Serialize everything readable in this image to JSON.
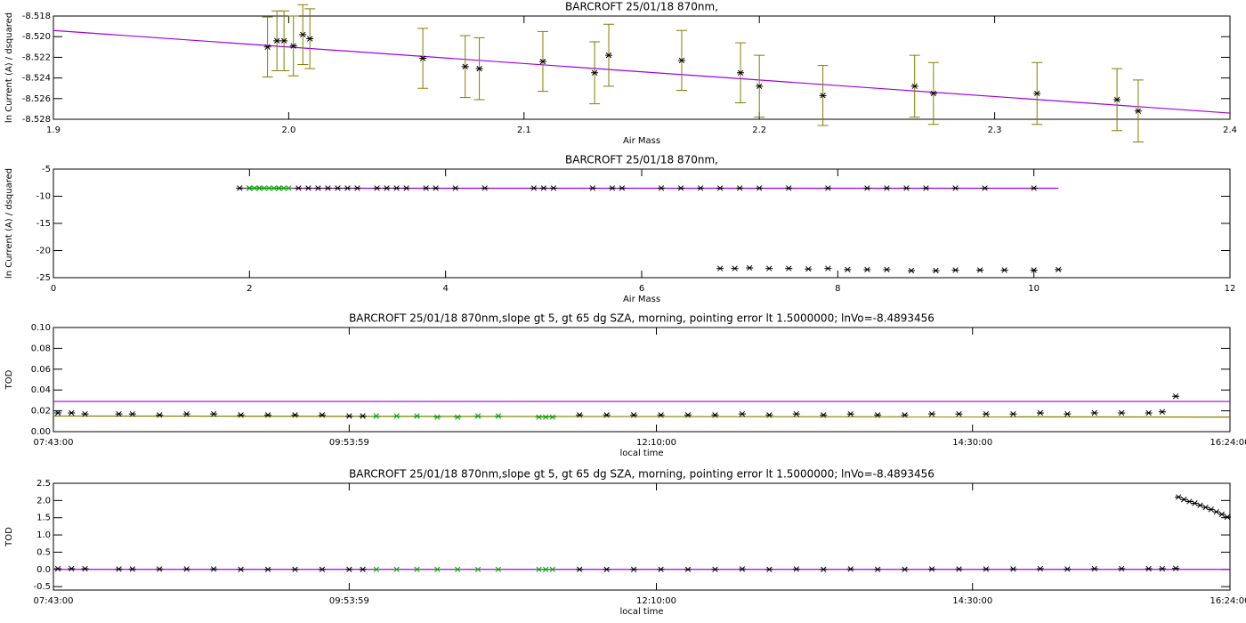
{
  "chart_data": [
    {
      "type": "scatter",
      "title": "BARCROFT 25/01/18 870nm,",
      "xlabel": "Air Mass",
      "ylabel": "ln Current (A) / dsquared",
      "xlim": [
        1.9,
        2.4
      ],
      "ylim": [
        -8.528,
        -8.518
      ],
      "xticks": [
        1.9,
        {
          "value": 2,
          "label": "2.0"
        },
        2.1,
        2.2,
        2.3,
        2.4
      ],
      "yticks": [
        -8.518,
        {
          "value": -8.52,
          "label": "-8.520"
        },
        -8.522,
        -8.524,
        -8.526,
        -8.528
      ],
      "series": [
        {
          "color": "#000000",
          "error_color": "#808000",
          "x": [
            1.991,
            1.995,
            1.998,
            2.002,
            2.006,
            2.009,
            2.057,
            2.075,
            2.081,
            2.108,
            2.13,
            2.136,
            2.167,
            2.192,
            2.2,
            2.227,
            2.266,
            2.274,
            2.318,
            2.352,
            2.361
          ],
          "values": [
            -8.521,
            -8.5204,
            -8.5204,
            -8.5209,
            -8.5198,
            -8.5202,
            -8.5221,
            -8.5229,
            -8.5231,
            -8.5224,
            -8.5235,
            -8.5218,
            -8.5223,
            -8.5235,
            -8.5248,
            -8.5257,
            -8.5248,
            -8.5255,
            -8.5255,
            -8.5261,
            -8.5272
          ],
          "errors": [
            0.0029,
            0.0029,
            0.0029,
            0.0029,
            0.0029,
            0.0029,
            0.0029,
            0.003,
            0.003,
            0.0029,
            0.003,
            0.003,
            0.0029,
            0.0029,
            0.003,
            0.0029,
            0.003,
            0.003,
            0.003,
            0.003,
            0.003
          ]
        }
      ],
      "lines": [
        {
          "color": "#a000e0",
          "x": [
            1.9,
            2.4
          ],
          "values": [
            -8.5194,
            -8.5274
          ]
        }
      ]
    },
    {
      "type": "scatter",
      "title": "BARCROFT 25/01/18 870nm,",
      "xlabel": "Air Mass",
      "ylabel": "ln Current (A) / dsquared",
      "xlim": [
        0,
        12
      ],
      "ylim": [
        -25,
        -5
      ],
      "xticks": [
        0,
        2,
        4,
        6,
        8,
        10,
        12
      ],
      "yticks": [
        -5,
        -10,
        -15,
        -20,
        -25
      ],
      "series": [
        {
          "color": "#000000",
          "x": [
            1.9,
            2.0,
            2.1,
            2.3,
            2.5,
            2.6,
            2.7,
            2.8,
            2.9,
            3.0,
            3.1,
            3.3,
            3.4,
            3.5,
            3.6,
            3.8,
            3.9,
            4.1,
            4.4,
            4.9,
            5.0,
            5.1,
            5.5,
            5.7,
            5.8,
            6.2,
            6.4,
            6.6,
            6.8,
            7.0,
            7.2,
            7.5,
            7.9,
            8.3,
            8.5,
            8.7,
            8.9,
            9.2,
            9.5,
            10.0
          ],
          "values": [
            -8.5,
            -8.5,
            -8.5,
            -8.5,
            -8.5,
            -8.5,
            -8.5,
            -8.5,
            -8.5,
            -8.5,
            -8.5,
            -8.5,
            -8.5,
            -8.5,
            -8.5,
            -8.5,
            -8.5,
            -8.5,
            -8.5,
            -8.5,
            -8.5,
            -8.5,
            -8.5,
            -8.5,
            -8.5,
            -8.5,
            -8.5,
            -8.5,
            -8.5,
            -8.5,
            -8.5,
            -8.5,
            -8.5,
            -8.5,
            -8.5,
            -8.5,
            -8.5,
            -8.5,
            -8.5,
            -8.5
          ]
        },
        {
          "color": "#000000",
          "x": [
            6.8,
            6.95,
            7.1,
            7.3,
            7.5,
            7.7,
            7.9,
            8.1,
            8.3,
            8.5,
            8.75,
            9.0,
            9.2,
            9.45,
            9.7,
            10.0,
            10.25
          ],
          "values": [
            -23.3,
            -23.3,
            -23.2,
            -23.3,
            -23.3,
            -23.4,
            -23.3,
            -23.5,
            -23.5,
            -23.5,
            -23.7,
            -23.7,
            -23.6,
            -23.6,
            -23.6,
            -23.6,
            -23.5
          ]
        },
        {
          "color": "#00a000",
          "x": [
            2.0,
            2.05,
            2.1,
            2.15,
            2.2,
            2.25,
            2.3,
            2.35,
            2.4
          ],
          "values": [
            -8.5,
            -8.5,
            -8.5,
            -8.5,
            -8.5,
            -8.5,
            -8.5,
            -8.5,
            -8.5
          ]
        }
      ],
      "lines": [
        {
          "color": "#a000e0",
          "x": [
            1.9,
            10.25
          ],
          "values": [
            -8.53,
            -8.53
          ]
        }
      ]
    },
    {
      "type": "scatter",
      "title": "BARCROFT 25/01/18 870nm,slope gt 5, gt 65 dg SZA, morning, pointing error lt 1.5000000; lnVo=-8.4893456",
      "xlabel": "local time",
      "ylabel": "TOD",
      "xlim": [
        7.7167,
        16.4
      ],
      "ylim": [
        0,
        0.1
      ],
      "xticks": [
        {
          "value": 7.7167,
          "label": "07:43:00"
        },
        {
          "value": 9.8997,
          "label": "09:53:59"
        },
        {
          "value": 12.1667,
          "label": "12:10:00"
        },
        {
          "value": 14.5,
          "label": "14:30:00"
        },
        {
          "value": 16.4,
          "label": "16:24:00"
        }
      ],
      "yticks": [
        {
          "value": 0,
          "label": "0.00"
        },
        0.02,
        0.04,
        0.06,
        0.08,
        {
          "value": 0.1,
          "label": "0.10"
        }
      ],
      "series": [
        {
          "color": "#000000",
          "x": [
            7.75,
            7.85,
            7.95,
            8.2,
            8.3,
            8.5,
            8.7,
            8.9,
            9.1,
            9.3,
            9.5,
            9.7,
            9.9,
            10.0,
            11.6,
            11.8,
            12.0,
            12.2,
            12.4,
            12.6,
            12.8,
            13.0,
            13.2,
            13.4,
            13.6,
            13.8,
            14.0,
            14.2,
            14.4,
            14.6,
            14.8,
            15.0,
            15.2,
            15.4,
            15.6,
            15.8,
            15.9,
            16.0
          ],
          "values": [
            0.018,
            0.018,
            0.017,
            0.017,
            0.017,
            0.016,
            0.017,
            0.017,
            0.016,
            0.016,
            0.016,
            0.016,
            0.015,
            0.015,
            0.016,
            0.016,
            0.016,
            0.016,
            0.016,
            0.016,
            0.017,
            0.016,
            0.017,
            0.016,
            0.017,
            0.016,
            0.016,
            0.017,
            0.017,
            0.017,
            0.017,
            0.018,
            0.017,
            0.018,
            0.018,
            0.018,
            0.019,
            0.034
          ]
        },
        {
          "color": "#00a000",
          "x": [
            10.1,
            10.25,
            10.4,
            10.55,
            10.7,
            10.85,
            11.0,
            11.3,
            11.35,
            11.4
          ],
          "values": [
            0.015,
            0.015,
            0.015,
            0.014,
            0.014,
            0.015,
            0.015,
            0.014,
            0.014,
            0.014
          ]
        }
      ],
      "lines": [
        {
          "color": "#a000e0",
          "x": [
            7.7167,
            16.4
          ],
          "values": [
            0.029,
            0.029
          ]
        },
        {
          "color": "#808000",
          "x": [
            7.7167,
            16.4
          ],
          "values": [
            0.015,
            0.014
          ]
        }
      ]
    },
    {
      "type": "scatter",
      "title": "BARCROFT 25/01/18 870nm,slope gt 5, gt 65 dg SZA, morning, pointing error lt 1.5000000; lnVo=-8.4893456",
      "xlabel": "local time",
      "ylabel": "TOD",
      "xlim": [
        7.7167,
        16.4
      ],
      "ylim": [
        -0.6,
        2.5
      ],
      "xticks": [
        {
          "value": 7.7167,
          "label": "07:43:00"
        },
        {
          "value": 9.8997,
          "label": "09:53:59"
        },
        {
          "value": 12.1667,
          "label": "12:10:00"
        },
        {
          "value": 14.5,
          "label": "14:30:00"
        },
        {
          "value": 16.4,
          "label": "16:24:00"
        }
      ],
      "yticks": [
        -0.5,
        {
          "value": 0,
          "label": "0.0"
        },
        0.5,
        {
          "value": 1,
          "label": "1.0"
        },
        1.5,
        {
          "value": 2,
          "label": "2.0"
        },
        2.5
      ],
      "series": [
        {
          "color": "#000000",
          "x": [
            7.75,
            7.85,
            7.95,
            8.2,
            8.3,
            8.5,
            8.7,
            8.9,
            9.1,
            9.3,
            9.5,
            9.7,
            9.9,
            10.0,
            11.6,
            11.8,
            12.0,
            12.2,
            12.4,
            12.6,
            12.8,
            13.0,
            13.2,
            13.4,
            13.6,
            13.8,
            14.0,
            14.2,
            14.4,
            14.6,
            14.8,
            15.0,
            15.2,
            15.4,
            15.6,
            15.8,
            15.9,
            16.0
          ],
          "values": [
            0.02,
            0.02,
            0.02,
            0.01,
            0.01,
            0.01,
            0.01,
            0.01,
            0.0,
            0.0,
            0.0,
            0.0,
            0.0,
            0.0,
            0.0,
            0.0,
            0.0,
            0.0,
            0.0,
            0.0,
            0.01,
            0.0,
            0.01,
            0.0,
            0.01,
            0.0,
            0.0,
            0.01,
            0.01,
            0.01,
            0.01,
            0.02,
            0.01,
            0.02,
            0.02,
            0.02,
            0.02,
            0.03
          ]
        },
        {
          "color": "#000000",
          "x": [
            16.02,
            16.06,
            16.1,
            16.14,
            16.18,
            16.22,
            16.26,
            16.3,
            16.34,
            16.38
          ],
          "values": [
            2.1,
            2.03,
            1.97,
            1.92,
            1.86,
            1.8,
            1.74,
            1.67,
            1.6,
            1.52
          ]
        },
        {
          "color": "#00a000",
          "x": [
            10.1,
            10.25,
            10.4,
            10.55,
            10.7,
            10.85,
            11.0,
            11.3,
            11.35,
            11.4
          ],
          "values": [
            0.0,
            0.0,
            0.0,
            0.0,
            0.0,
            0.0,
            0.0,
            0.0,
            0.0,
            0.0
          ]
        }
      ],
      "lines": [
        {
          "color": "#a000e0",
          "x": [
            7.7167,
            16.4
          ],
          "values": [
            0.0,
            0.0
          ]
        }
      ]
    }
  ]
}
